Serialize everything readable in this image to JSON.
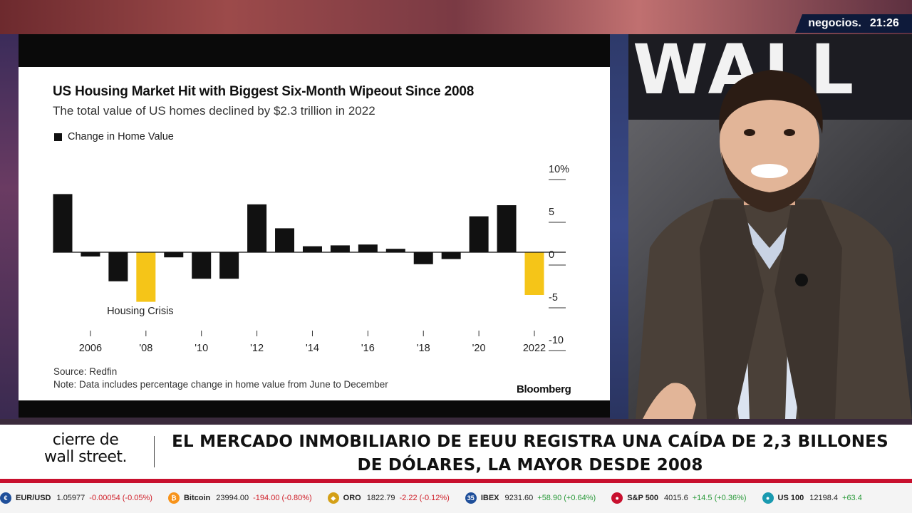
{
  "channel": {
    "name": "negocios.",
    "time": "21:26"
  },
  "chart_data": {
    "type": "bar",
    "title": "US Housing Market Hit with Biggest Six-Month Wipeout Since 2008",
    "subtitle": "The total value of US homes declined by $2.3 trillion in 2022",
    "legend": "Change in Home Value",
    "x": [
      2005,
      2006,
      2007,
      2008,
      2009,
      2010,
      2011,
      2012,
      2013,
      2014,
      2015,
      2016,
      2017,
      2018,
      2019,
      2020,
      2021,
      2022
    ],
    "values": [
      6.8,
      -0.5,
      -3.4,
      -5.8,
      -0.6,
      -3.1,
      -3.1,
      5.6,
      2.8,
      0.7,
      0.8,
      0.9,
      0.4,
      -1.4,
      -0.8,
      4.2,
      5.5,
      -5.0
    ],
    "highlight_years": [
      2008,
      2022
    ],
    "highlight_color": "#f5c518",
    "bar_color": "#111111",
    "x_tick_labels": [
      {
        "year": 2006,
        "label": "2006"
      },
      {
        "year": 2008,
        "label": "'08"
      },
      {
        "year": 2010,
        "label": "'10"
      },
      {
        "year": 2012,
        "label": "'12"
      },
      {
        "year": 2014,
        "label": "'14"
      },
      {
        "year": 2016,
        "label": "'16"
      },
      {
        "year": 2018,
        "label": "'18"
      },
      {
        "year": 2020,
        "label": "'20"
      },
      {
        "year": 2022,
        "label": "2022"
      }
    ],
    "y_ticks": [
      {
        "value": 10,
        "label": "10%"
      },
      {
        "value": 5,
        "label": "5"
      },
      {
        "value": 0,
        "label": "0"
      },
      {
        "value": -5,
        "label": "-5"
      },
      {
        "value": -10,
        "label": "-10"
      }
    ],
    "ylim": [
      -10,
      10
    ],
    "annotation": {
      "text": "Housing Crisis",
      "year": 2008
    },
    "source": "Source: Redfin",
    "note": "Note: Data includes percentage change in home value from June to December",
    "brand": "Bloomberg"
  },
  "background": {
    "wall_sign": "WALL"
  },
  "lower_third": {
    "program_line1": "cierre de",
    "program_line2": "wall street.",
    "headline": "EL MERCADO INMOBILIARIO DE EEUU REGISTRA UNA CAÍDA DE 2,3 BILLONES DE DÓLARES, LA MAYOR DESDE 2008"
  },
  "ticker": [
    {
      "name": "EUR/USD",
      "price": "1.05977",
      "change": "-0.00054 (-0.05%)",
      "dir": "down",
      "icon": "€",
      "color": "#1f4f9a"
    },
    {
      "name": "Bitcoin",
      "price": "23994.00",
      "change": "-194.00 (-0.80%)",
      "dir": "down",
      "icon": "₿",
      "color": "#f7931a"
    },
    {
      "name": "ORO",
      "price": "1822.79",
      "change": "-2.22 (-0.12%)",
      "dir": "down",
      "icon": "◆",
      "color": "#d4a017"
    },
    {
      "name": "IBEX",
      "price": "9231.60",
      "change": "+58.90 (+0.64%)",
      "dir": "up",
      "icon": "35",
      "color": "#1f4f9a"
    },
    {
      "name": "S&P 500",
      "price": "4015.6",
      "change": "+14.5 (+0.36%)",
      "dir": "up",
      "icon": "●",
      "color": "#c8102e"
    },
    {
      "name": "US 100",
      "price": "12198.4",
      "change": "+63.4",
      "dir": "up",
      "icon": "●",
      "color": "#1a9ab0"
    }
  ]
}
